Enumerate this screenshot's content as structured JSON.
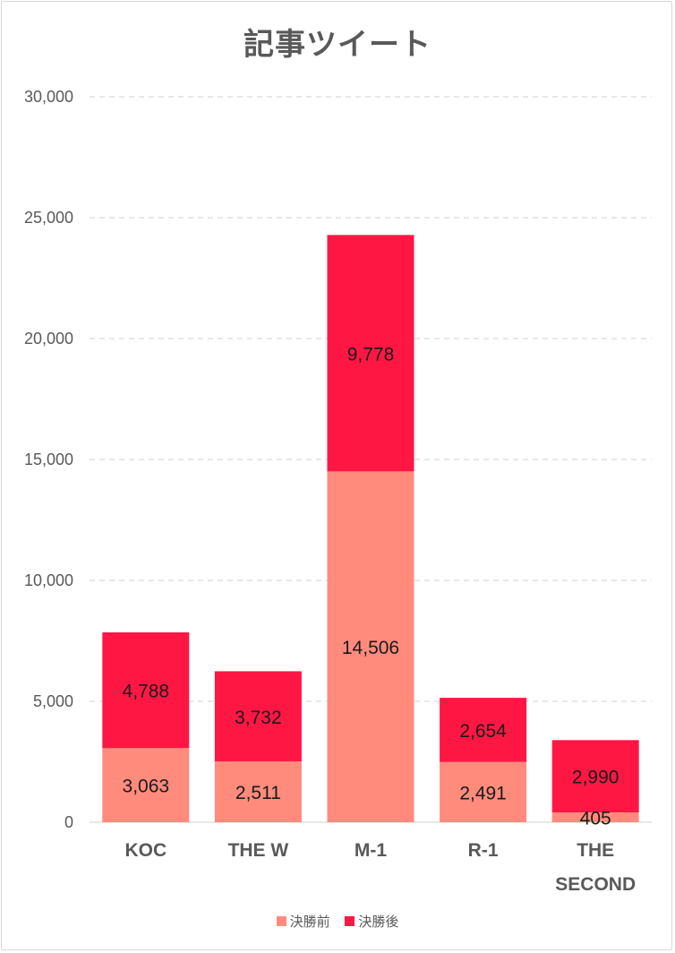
{
  "chart_data": {
    "type": "bar",
    "stacked": true,
    "title": "記事ツイート",
    "categories": [
      [
        "KOC"
      ],
      [
        "THE W"
      ],
      [
        "M-1"
      ],
      [
        "R-1"
      ],
      [
        "THE",
        "SECOND"
      ]
    ],
    "series": [
      {
        "name": "決勝前",
        "color": "#ff8b7d",
        "values": [
          3063,
          2511,
          14506,
          2491,
          405
        ]
      },
      {
        "name": "決勝後",
        "color": "#ff1744",
        "values": [
          4788,
          3732,
          9778,
          2654,
          2990
        ]
      }
    ],
    "ylim": [
      0,
      30000
    ],
    "yticks": [
      0,
      5000,
      10000,
      15000,
      20000,
      25000,
      30000
    ],
    "ytick_labels": [
      "0",
      "5,000",
      "10,000",
      "15,000",
      "20,000",
      "25,000",
      "30,000"
    ],
    "data_labels": [
      [
        "3,063",
        "2,511",
        "14,506",
        "2,491",
        "405"
      ],
      [
        "4,788",
        "3,732",
        "9,778",
        "2,654",
        "2,990"
      ]
    ],
    "grid": true,
    "legend_position": "bottom",
    "xlabel": "",
    "ylabel": ""
  }
}
